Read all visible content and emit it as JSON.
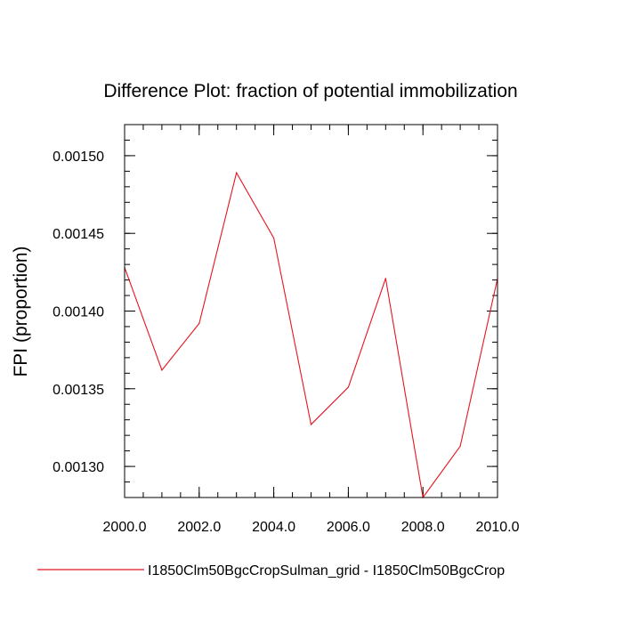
{
  "chart_data": {
    "type": "line",
    "title": "Difference Plot: fraction of potential immobilization",
    "xlabel": "",
    "ylabel": "FPI  (proportion)",
    "xlim": [
      2000.0,
      2010.0
    ],
    "ylim": [
      0.00128,
      0.00152
    ],
    "x_ticks": [
      2000.0,
      2002.0,
      2004.0,
      2006.0,
      2008.0,
      2010.0
    ],
    "x_tick_labels": [
      "2000.0",
      "2002.0",
      "2004.0",
      "2006.0",
      "2008.0",
      "2010.0"
    ],
    "y_ticks": [
      0.0013,
      0.00135,
      0.0014,
      0.00145,
      0.0015
    ],
    "y_tick_labels": [
      "0.00130",
      "0.00135",
      "0.00140",
      "0.00145",
      "0.00150"
    ],
    "grid": false,
    "legend_position": "bottom",
    "series": [
      {
        "name": "I1850Clm50BgcCropSulman_grid - I1850Clm50BgcCrop",
        "color": "#e8141e",
        "x": [
          2000,
          2001,
          2002,
          2003,
          2004,
          2005,
          2006,
          2007,
          2008,
          2009,
          2010
        ],
        "values": [
          0.001428,
          0.001362,
          0.001392,
          0.001489,
          0.001447,
          0.001327,
          0.001351,
          0.001421,
          0.00128,
          0.001313,
          0.001421
        ]
      }
    ]
  }
}
